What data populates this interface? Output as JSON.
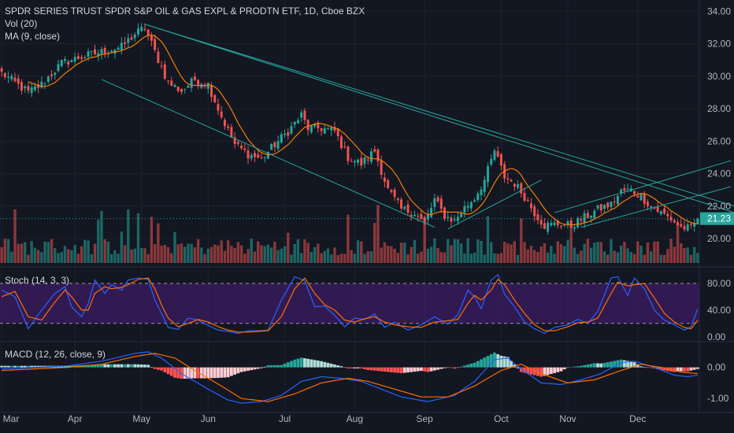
{
  "header": {
    "title": "SPDR SERIES TRUST SPDR S&P OIL & GAS EXPL & PRODTN ETF, 1D, Cboe BZX",
    "vol_label": "Vol (20)",
    "ma_label": "MA (9, close)"
  },
  "stoch": {
    "label": "Stoch (14, 3, 3)"
  },
  "macd": {
    "label": "MACD (12, 26, close, 9)"
  },
  "colors": {
    "background": "#131722",
    "up": "#26a69a",
    "down": "#ef5350",
    "ma": "#f57c00",
    "trendline": "#26a69a",
    "stoch_band": "#4a1d7a",
    "stoch_k": "#2962ff",
    "stoch_d": "#ff6d00",
    "macd_line": "#2962ff",
    "signal_line": "#ff6d00",
    "price_tag": "#26a69a"
  },
  "chart_data": [
    {
      "type": "candlestick",
      "title": "SPDR SERIES TRUST SPDR S&P OIL & GAS EXPL & PRODTN ETF, 1D, Cboe BZX",
      "x_ticks": [
        "Mar",
        "Apr",
        "May",
        "Jun",
        "Jul",
        "Aug",
        "Sep",
        "Oct",
        "Nov",
        "Dec"
      ],
      "y_ticks": [
        20.0,
        22.0,
        24.0,
        26.0,
        28.0,
        30.0,
        32.0,
        34.0
      ],
      "ylim": [
        18.5,
        34.5
      ],
      "last_price": 21.23,
      "close_anchors": [
        [
          0,
          30.2
        ],
        [
          8,
          29.0
        ],
        [
          12,
          29.5
        ],
        [
          18,
          30.8
        ],
        [
          24,
          31.2
        ],
        [
          30,
          31.5
        ],
        [
          36,
          31.8
        ],
        [
          40,
          32.6
        ],
        [
          43,
          33.0
        ],
        [
          46,
          31.5
        ],
        [
          50,
          29.6
        ],
        [
          54,
          29.1
        ],
        [
          58,
          29.8
        ],
        [
          62,
          29.5
        ],
        [
          66,
          27.5
        ],
        [
          70,
          25.8
        ],
        [
          74,
          25.2
        ],
        [
          78,
          24.9
        ],
        [
          82,
          25.8
        ],
        [
          86,
          26.6
        ],
        [
          90,
          27.6
        ],
        [
          92,
          26.8
        ],
        [
          96,
          26.8
        ],
        [
          100,
          26.6
        ],
        [
          104,
          25.0
        ],
        [
          108,
          24.6
        ],
        [
          112,
          25.4
        ],
        [
          116,
          23.0
        ],
        [
          120,
          21.8
        ],
        [
          124,
          21.6
        ],
        [
          127,
          20.9
        ],
        [
          130,
          22.4
        ],
        [
          133,
          21.4
        ],
        [
          136,
          21.1
        ],
        [
          139,
          21.9
        ],
        [
          142,
          22.5
        ],
        [
          145,
          23.6
        ],
        [
          148,
          25.4
        ],
        [
          151,
          23.8
        ],
        [
          154,
          23.4
        ],
        [
          157,
          22.6
        ],
        [
          160,
          21.6
        ],
        [
          163,
          20.8
        ],
        [
          167,
          20.9
        ],
        [
          171,
          20.8
        ],
        [
          175,
          21.3
        ],
        [
          179,
          21.8
        ],
        [
          183,
          22.1
        ],
        [
          186,
          22.9
        ],
        [
          189,
          23.0
        ],
        [
          192,
          22.6
        ],
        [
          195,
          22.0
        ],
        [
          198,
          21.6
        ],
        [
          201,
          21.2
        ],
        [
          204,
          20.7
        ],
        [
          207,
          20.6
        ],
        [
          209,
          21.23
        ]
      ],
      "ma": {
        "name": "MA (9, close)",
        "period": 9
      },
      "volume": {
        "name": "Vol (20)"
      },
      "trendlines": [
        {
          "from": [
            43,
            33.2
          ],
          "to": [
            220,
            22.0
          ]
        },
        {
          "from": [
            43,
            33.2
          ],
          "to": [
            220,
            21.6
          ]
        },
        {
          "from": [
            30,
            29.8
          ],
          "to": [
            130,
            20.7
          ]
        },
        {
          "from": [
            134,
            20.6
          ],
          "to": [
            162,
            23.6
          ]
        },
        {
          "from": [
            166,
            21.6
          ],
          "to": [
            219,
            24.8
          ]
        },
        {
          "from": [
            174,
            20.7
          ],
          "to": [
            219,
            23.2
          ]
        }
      ]
    },
    {
      "type": "line",
      "title": "Stoch (14, 3, 3)",
      "y_ticks": [
        0.0,
        40.0,
        80.0
      ],
      "y_tick_labels": [
        "0.00",
        "40.00",
        "80.00"
      ],
      "band": [
        20,
        80
      ],
      "ylim": [
        -5,
        100
      ],
      "series": [
        {
          "name": "%K",
          "anchors": [
            [
              0,
              70
            ],
            [
              4,
              60
            ],
            [
              8,
              12
            ],
            [
              12,
              40
            ],
            [
              16,
              65
            ],
            [
              19,
              75
            ],
            [
              21,
              45
            ],
            [
              24,
              30
            ],
            [
              26,
              50
            ],
            [
              28,
              85
            ],
            [
              31,
              65
            ],
            [
              33,
              78
            ],
            [
              36,
              70
            ],
            [
              38,
              85
            ],
            [
              41,
              88
            ],
            [
              44,
              86
            ],
            [
              46,
              55
            ],
            [
              48,
              35
            ],
            [
              50,
              14
            ],
            [
              53,
              11
            ],
            [
              56,
              28
            ],
            [
              59,
              25
            ],
            [
              62,
              17
            ],
            [
              65,
              10
            ],
            [
              68,
              8
            ],
            [
              71,
              5
            ],
            [
              74,
              9
            ],
            [
              77,
              9
            ],
            [
              80,
              10
            ],
            [
              84,
              55
            ],
            [
              88,
              90
            ],
            [
              91,
              84
            ],
            [
              94,
              45
            ],
            [
              97,
              46
            ],
            [
              100,
              32
            ],
            [
              103,
              15
            ],
            [
              106,
              28
            ],
            [
              109,
              26
            ],
            [
              112,
              34
            ],
            [
              115,
              14
            ],
            [
              118,
              22
            ],
            [
              122,
              10
            ],
            [
              126,
              18
            ],
            [
              130,
              30
            ],
            [
              134,
              19
            ],
            [
              137,
              33
            ],
            [
              140,
              70
            ],
            [
              142,
              60
            ],
            [
              144,
              42
            ],
            [
              147,
              85
            ],
            [
              149,
              93
            ],
            [
              151,
              64
            ],
            [
              154,
              45
            ],
            [
              157,
              22
            ],
            [
              160,
              12
            ],
            [
              163,
              5
            ],
            [
              166,
              14
            ],
            [
              170,
              18
            ],
            [
              173,
              26
            ],
            [
              176,
              20
            ],
            [
              179,
              38
            ],
            [
              183,
              88
            ],
            [
              185,
              90
            ],
            [
              188,
              62
            ],
            [
              190,
              88
            ],
            [
              193,
              72
            ],
            [
              196,
              40
            ],
            [
              199,
              25
            ],
            [
              202,
              18
            ],
            [
              205,
              10
            ],
            [
              207,
              15
            ],
            [
              209,
              42
            ]
          ]
        },
        {
          "name": "%D",
          "anchors": [
            [
              0,
              60
            ],
            [
              4,
              68
            ],
            [
              8,
              30
            ],
            [
              12,
              25
            ],
            [
              16,
              52
            ],
            [
              19,
              70
            ],
            [
              21,
              60
            ],
            [
              24,
              40
            ],
            [
              26,
              40
            ],
            [
              28,
              65
            ],
            [
              31,
              75
            ],
            [
              33,
              72
            ],
            [
              36,
              74
            ],
            [
              38,
              78
            ],
            [
              41,
              86
            ],
            [
              44,
              88
            ],
            [
              46,
              72
            ],
            [
              48,
              48
            ],
            [
              50,
              28
            ],
            [
              53,
              15
            ],
            [
              56,
              20
            ],
            [
              59,
              26
            ],
            [
              62,
              22
            ],
            [
              65,
              15
            ],
            [
              68,
              10
            ],
            [
              71,
              7
            ],
            [
              74,
              7
            ],
            [
              77,
              8
            ],
            [
              80,
              9
            ],
            [
              84,
              30
            ],
            [
              88,
              72
            ],
            [
              91,
              88
            ],
            [
              94,
              65
            ],
            [
              97,
              48
            ],
            [
              100,
              40
            ],
            [
              103,
              25
            ],
            [
              106,
              22
            ],
            [
              109,
              27
            ],
            [
              112,
              30
            ],
            [
              115,
              22
            ],
            [
              118,
              18
            ],
            [
              122,
              15
            ],
            [
              126,
              14
            ],
            [
              130,
              22
            ],
            [
              134,
              24
            ],
            [
              137,
              26
            ],
            [
              140,
              50
            ],
            [
              142,
              62
            ],
            [
              144,
              55
            ],
            [
              147,
              70
            ],
            [
              149,
              86
            ],
            [
              151,
              78
            ],
            [
              154,
              55
            ],
            [
              157,
              35
            ],
            [
              160,
              18
            ],
            [
              163,
              9
            ],
            [
              166,
              9
            ],
            [
              170,
              15
            ],
            [
              173,
              21
            ],
            [
              176,
              22
            ],
            [
              179,
              28
            ],
            [
              183,
              65
            ],
            [
              185,
              82
            ],
            [
              188,
              76
            ],
            [
              190,
              78
            ],
            [
              193,
              80
            ],
            [
              196,
              58
            ],
            [
              199,
              35
            ],
            [
              202,
              22
            ],
            [
              205,
              14
            ],
            [
              207,
              12
            ],
            [
              209,
              25
            ]
          ]
        }
      ]
    },
    {
      "type": "line",
      "title": "MACD (12, 26, close, 9)",
      "y_ticks": [
        0.0,
        -1.0
      ],
      "y_tick_labels": [
        "0.00",
        "-1.00"
      ],
      "ylim": [
        -1.35,
        0.75
      ],
      "series": [
        {
          "name": "MACD",
          "anchors": [
            [
              0,
              -0.05
            ],
            [
              10,
              0.0
            ],
            [
              20,
              0.05
            ],
            [
              30,
              0.2
            ],
            [
              40,
              0.45
            ],
            [
              44,
              0.5
            ],
            [
              48,
              0.3
            ],
            [
              54,
              -0.2
            ],
            [
              62,
              -0.7
            ],
            [
              68,
              -1.05
            ],
            [
              72,
              -1.15
            ],
            [
              78,
              -1.1
            ],
            [
              84,
              -0.9
            ],
            [
              90,
              -0.45
            ],
            [
              96,
              -0.3
            ],
            [
              102,
              -0.35
            ],
            [
              108,
              -0.45
            ],
            [
              114,
              -0.7
            ],
            [
              120,
              -0.95
            ],
            [
              128,
              -1.1
            ],
            [
              136,
              -0.9
            ],
            [
              142,
              -0.45
            ],
            [
              148,
              0.25
            ],
            [
              152,
              0.3
            ],
            [
              156,
              -0.05
            ],
            [
              162,
              -0.5
            ],
            [
              168,
              -0.55
            ],
            [
              174,
              -0.4
            ],
            [
              180,
              -0.2
            ],
            [
              186,
              0.15
            ],
            [
              190,
              0.2
            ],
            [
              196,
              0.0
            ],
            [
              202,
              -0.25
            ],
            [
              206,
              -0.3
            ],
            [
              209,
              -0.25
            ]
          ]
        },
        {
          "name": "Signal",
          "anchors": [
            [
              0,
              -0.1
            ],
            [
              10,
              -0.05
            ],
            [
              20,
              0.0
            ],
            [
              30,
              0.1
            ],
            [
              40,
              0.35
            ],
            [
              46,
              0.45
            ],
            [
              52,
              0.3
            ],
            [
              58,
              -0.1
            ],
            [
              66,
              -0.6
            ],
            [
              72,
              -1.0
            ],
            [
              80,
              -1.1
            ],
            [
              88,
              -0.85
            ],
            [
              96,
              -0.5
            ],
            [
              104,
              -0.35
            ],
            [
              110,
              -0.45
            ],
            [
              118,
              -0.7
            ],
            [
              126,
              -0.95
            ],
            [
              134,
              -0.95
            ],
            [
              142,
              -0.6
            ],
            [
              150,
              -0.1
            ],
            [
              156,
              0.1
            ],
            [
              162,
              -0.2
            ],
            [
              170,
              -0.5
            ],
            [
              178,
              -0.4
            ],
            [
              186,
              -0.1
            ],
            [
              192,
              0.1
            ],
            [
              198,
              0.0
            ],
            [
              204,
              -0.15
            ],
            [
              209,
              -0.2
            ]
          ]
        }
      ]
    }
  ]
}
